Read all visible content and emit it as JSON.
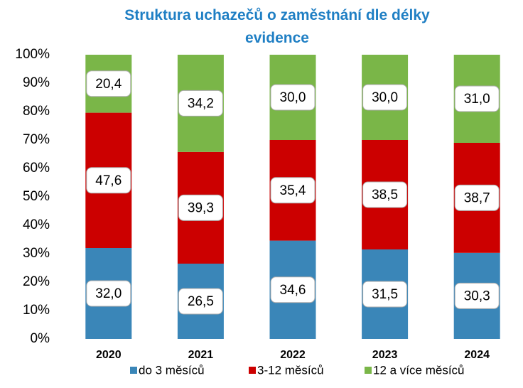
{
  "chart_data": {
    "type": "stacked_bar_100",
    "title": "Struktura uchazečů o zaměstnání dle délky evidence",
    "categories": [
      "2020",
      "2021",
      "2022",
      "2023",
      "2024"
    ],
    "series": [
      {
        "name": "do 3 měsíců",
        "color": "#3a86b8",
        "values": [
          32.0,
          26.5,
          34.6,
          31.5,
          30.3
        ],
        "value_labels": [
          "32,0",
          "26,5",
          "34,6",
          "31,5",
          "30,3"
        ]
      },
      {
        "name": "3-12 měsíců",
        "color": "#cc0000",
        "values": [
          47.6,
          39.3,
          35.4,
          38.5,
          38.7
        ],
        "value_labels": [
          "47,6",
          "39,3",
          "35,4",
          "38,5",
          "38,7"
        ]
      },
      {
        "name": "12 a více měsíců",
        "color": "#7ab648",
        "values": [
          20.4,
          34.2,
          30.0,
          30.0,
          31.0
        ],
        "value_labels": [
          "20,4",
          "34,2",
          "30,0",
          "30,0",
          "31,0"
        ]
      }
    ],
    "ylim": [
      0,
      100
    ],
    "yticks": [
      {
        "value": 0,
        "label": "0%"
      },
      {
        "value": 10,
        "label": "10%"
      },
      {
        "value": 20,
        "label": "20%"
      },
      {
        "value": 30,
        "label": "30%"
      },
      {
        "value": 40,
        "label": "40%"
      },
      {
        "value": 50,
        "label": "50%"
      },
      {
        "value": 60,
        "label": "60%"
      },
      {
        "value": 70,
        "label": "70%"
      },
      {
        "value": 80,
        "label": "80%"
      },
      {
        "value": 90,
        "label": "90%"
      },
      {
        "value": 100,
        "label": "100%"
      }
    ],
    "legend": "bottom"
  }
}
